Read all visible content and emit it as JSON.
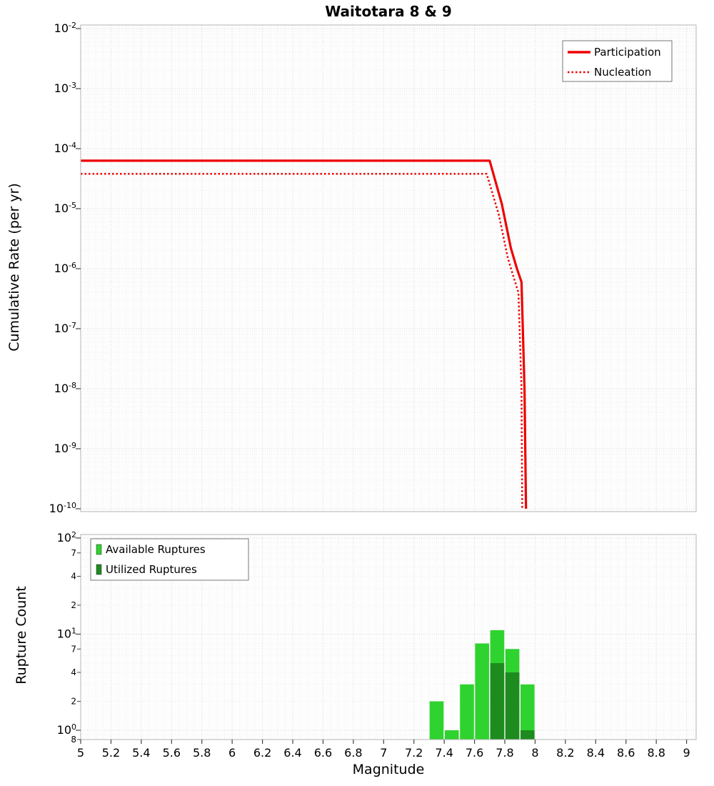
{
  "title": "Waitotara 8 & 9",
  "labels": {
    "xlabel": "Magnitude",
    "ylabel_top": "Cumulative Rate (per yr)",
    "ylabel_bottom": "Rupture Count"
  },
  "chart_data": [
    {
      "type": "line",
      "title": "Waitotara 8 & 9",
      "ylabel": "Cumulative Rate (per yr)",
      "y_scale": "log",
      "ylim": [
        1e-10,
        0.01
      ],
      "xlim": [
        5,
        9
      ],
      "grid": true,
      "y_ticks_exponents": [
        -2,
        -3,
        -4,
        -5,
        -6,
        -7,
        -8,
        -9,
        -10
      ],
      "legend": {
        "position": "top-right",
        "entries": [
          {
            "label": "Participation",
            "style": "solid",
            "color": "#ee0000"
          },
          {
            "label": "Nucleation",
            "style": "dotted",
            "color": "#ee0000"
          }
        ]
      },
      "series": [
        {
          "name": "Participation",
          "color": "#ee0000",
          "style": "solid",
          "width": 3.2,
          "points": [
            [
              5.0,
              6.3e-05
            ],
            [
              7.7,
              6.3e-05
            ],
            [
              7.78,
              1.2e-05
            ],
            [
              7.84,
              2.2e-06
            ],
            [
              7.88,
              1e-06
            ],
            [
              7.91,
              6e-07
            ],
            [
              7.93,
              1e-08
            ],
            [
              7.94,
              1e-10
            ]
          ]
        },
        {
          "name": "Nucleation",
          "color": "#ee0000",
          "style": "dotted",
          "width": 2.5,
          "points": [
            [
              5.0,
              3.8e-05
            ],
            [
              7.68,
              3.8e-05
            ],
            [
              7.76,
              8e-06
            ],
            [
              7.82,
              1.5e-06
            ],
            [
              7.86,
              7e-07
            ],
            [
              7.89,
              4e-07
            ],
            [
              7.91,
              1e-08
            ],
            [
              7.915,
              1e-10
            ]
          ]
        }
      ]
    },
    {
      "type": "bar",
      "ylabel": "Rupture Count",
      "xlabel": "Magnitude",
      "y_scale": "log",
      "ylim": [
        0.8,
        100
      ],
      "xlim": [
        5,
        9
      ],
      "bin_width": 0.1,
      "grid": true,
      "y_major_exponents": [
        2,
        1,
        0
      ],
      "y_minor_labels": [
        70,
        40,
        20,
        7,
        4,
        2,
        0.8
      ],
      "x_ticks": [
        5,
        5.2,
        5.4,
        5.6,
        5.8,
        6,
        6.2,
        6.4,
        6.6,
        6.8,
        7,
        7.2,
        7.4,
        7.6,
        7.8,
        8,
        8.2,
        8.4,
        8.6,
        8.8,
        9
      ],
      "legend": {
        "position": "top-left",
        "entries": [
          {
            "label": "Available Ruptures",
            "color": "#2fd32f"
          },
          {
            "label": "Utilized Ruptures",
            "color": "#1e8b1e"
          }
        ]
      },
      "series": [
        {
          "name": "Available Ruptures",
          "color": "#2fd32f",
          "bars": [
            [
              7.35,
              2
            ],
            [
              7.45,
              1
            ],
            [
              7.55,
              3
            ],
            [
              7.65,
              8
            ],
            [
              7.75,
              11
            ],
            [
              7.85,
              7
            ],
            [
              7.95,
              3
            ]
          ]
        },
        {
          "name": "Utilized Ruptures",
          "color": "#1e8b1e",
          "bars": [
            [
              7.75,
              5
            ],
            [
              7.85,
              4
            ],
            [
              7.95,
              1
            ]
          ]
        }
      ]
    }
  ]
}
